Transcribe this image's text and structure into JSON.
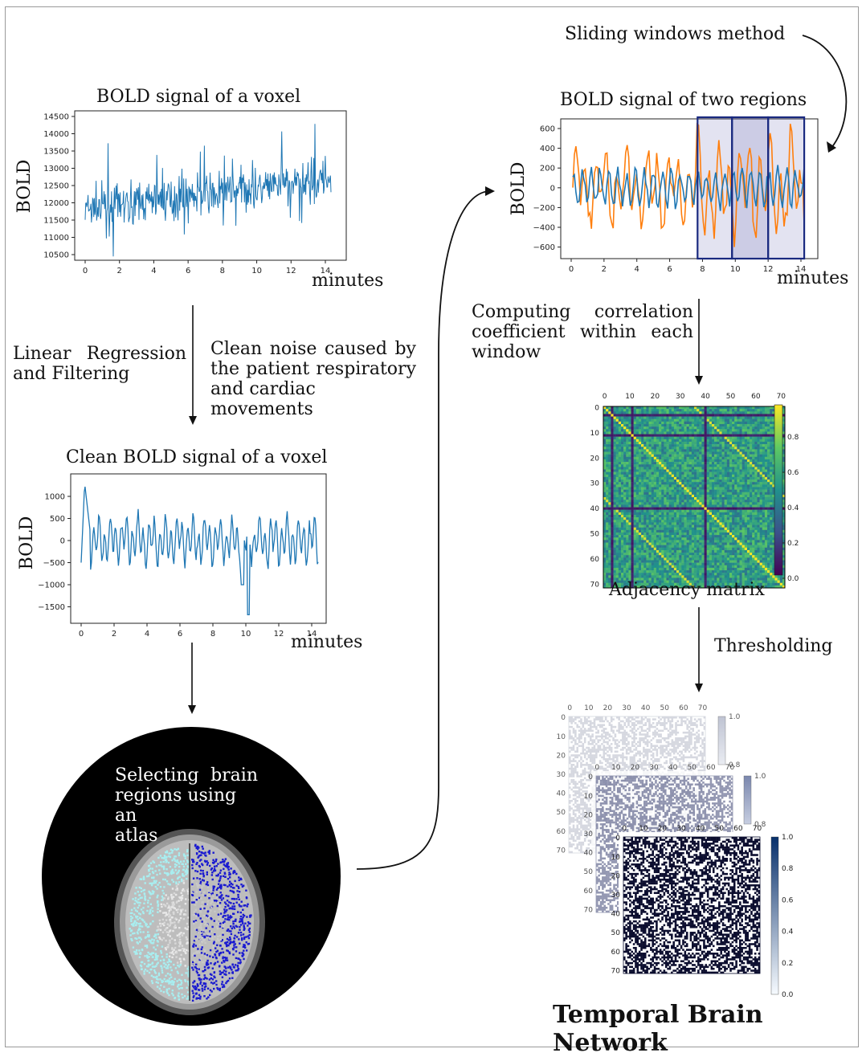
{
  "steps": {
    "sliding_windows": "Sliding windows method",
    "linear_regression": [
      "Linear   Regression",
      "and Filtering"
    ],
    "clean_noise": [
      "Clean  noise  caused  by",
      "the patient  respiratory",
      "and cardiac movements"
    ],
    "computing": [
      "Computing    correlation",
      "coefficient    within    each",
      "window"
    ],
    "thresholding": "Thresholding",
    "selecting": [
      "Selecting  brain",
      "regions using an",
      "atlas"
    ],
    "final": "Temporal Brain Network"
  },
  "charts": {
    "voxel": {
      "title": "BOLD signal of a voxel",
      "ylabel": "BOLD",
      "xlabel": "minutes",
      "xticks": [
        "0",
        "2",
        "4",
        "6",
        "8",
        "10",
        "12",
        "14"
      ],
      "yticks": [
        "14500",
        "14000",
        "13500",
        "13000",
        "12500",
        "12000",
        "11500",
        "11000",
        "10500"
      ]
    },
    "clean": {
      "title": "Clean BOLD signal of a voxel",
      "ylabel": "BOLD",
      "xlabel": "minutes",
      "xticks": [
        "0",
        "2",
        "4",
        "6",
        "8",
        "10",
        "12",
        "14"
      ],
      "yticks": [
        "1000",
        "500",
        "0",
        "−500",
        "−1000",
        "−1500"
      ]
    },
    "two_regions": {
      "title": "BOLD signal of two regions",
      "ylabel": "BOLD",
      "xlabel": "minutes",
      "xticks": [
        "0",
        "2",
        "4",
        "6",
        "8",
        "10",
        "12",
        "14"
      ],
      "yticks": [
        "600",
        "400",
        "200",
        "0",
        "−200",
        "−400",
        "−600"
      ]
    },
    "adjacency": {
      "caption": "Adjacency matrix",
      "ticks": [
        "0",
        "10",
        "20",
        "30",
        "40",
        "50",
        "60",
        "70"
      ],
      "cbar_ticks": [
        "0.8",
        "0.6",
        "0.4",
        "0.2",
        "0.0"
      ]
    },
    "thresholded": {
      "ticks": [
        "0",
        "10",
        "20",
        "30",
        "40",
        "50",
        "60",
        "70"
      ],
      "cbar_ticks_front": [
        "1.0",
        "0.8",
        "0.6",
        "0.4",
        "0.2",
        "0.0"
      ],
      "cbar_ticks_back": [
        "1.0",
        "0.8"
      ]
    }
  },
  "chart_data": [
    {
      "type": "line",
      "title": "BOLD signal of a voxel",
      "xlabel": "minutes",
      "ylabel": "BOLD",
      "xlim": [
        0,
        14.3
      ],
      "ylim": [
        10300,
        14500
      ],
      "series": [
        {
          "values_summary": {
            "start_mean": 11800,
            "end_mean": 12700,
            "min": 10450,
            "max": 14350
          }
        }
      ]
    },
    {
      "type": "line",
      "title": "Clean BOLD signal of a voxel",
      "xlabel": "minutes",
      "ylabel": "BOLD",
      "xlim": [
        0,
        14.3
      ],
      "ylim": [
        -1700,
        1400
      ],
      "series": [
        {
          "values_summary": {
            "max": 1320,
            "min": -1680
          }
        }
      ]
    },
    {
      "type": "line",
      "title": "BOLD signal of two regions",
      "xlabel": "minutes",
      "ylabel": "BOLD",
      "xlim": [
        0,
        14.3
      ],
      "ylim": [
        -650,
        650
      ],
      "series": [
        {
          "color": "#1f77b4",
          "values_summary": {
            "range": [
              -300,
              300
            ]
          }
        },
        {
          "color": "#ff7f0e",
          "values_summary": {
            "range": [
              -600,
              650
            ]
          }
        }
      ],
      "windows": [
        [
          7.7,
          9.8
        ],
        [
          9.8,
          12.0
        ],
        [
          12.0,
          14.2
        ]
      ]
    },
    {
      "type": "heatmap",
      "caption": "Adjacency matrix",
      "size": 72,
      "vmin": 0.0,
      "vmax": 0.95,
      "colormap": "viridis"
    }
  ],
  "colors": {
    "blue_series": "#1f77b4",
    "orange_series": "#ff7f0e",
    "window_fill": "#3a3a9a",
    "window_border": "#1a2a80",
    "atlas_left": "#a8eef0",
    "atlas_right": "#1a1ad0"
  }
}
